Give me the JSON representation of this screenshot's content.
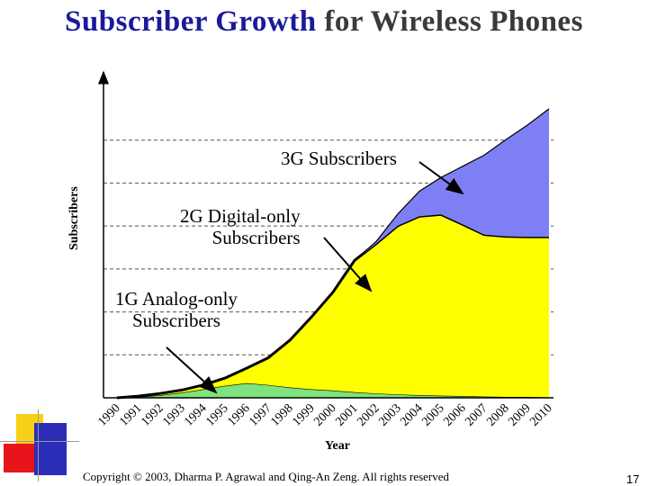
{
  "title_part1": "Subscriber Growth",
  "title_part2": "for Wireless Phones",
  "footer": "Copyright © 2003, Dharma P. Agrawal and Qing-An Zeng. All rights reserved",
  "page_number": "17",
  "chart_data": {
    "type": "area",
    "stacked": true,
    "title": "Subscriber Growth for Wireless Phones",
    "xlabel": "Year",
    "ylabel": "Subscribers",
    "x": [
      "1990",
      "1991",
      "1992",
      "1993",
      "1994",
      "1995",
      "1996",
      "1997",
      "1998",
      "1999",
      "2000",
      "2001",
      "2002",
      "2003",
      "2004",
      "2005",
      "2006",
      "2007",
      "2008",
      "2009",
      "2010"
    ],
    "ylim": [
      0,
      7
    ],
    "gridlines": "dashed",
    "series": [
      {
        "name": "1G Analog-only Subscribers",
        "color": "#7de37d",
        "values": [
          0,
          0.02,
          0.06,
          0.12,
          0.2,
          0.28,
          0.34,
          0.3,
          0.24,
          0.2,
          0.17,
          0.13,
          0.1,
          0.08,
          0.06,
          0.05,
          0.04,
          0.03,
          0.02,
          0.02,
          0.01
        ]
      },
      {
        "name": "2G Digital-only Subscribers",
        "color": "#ffff00",
        "values": [
          0,
          0.02,
          0.04,
          0.06,
          0.1,
          0.18,
          0.35,
          0.63,
          1.1,
          1.68,
          2.29,
          3.07,
          3.49,
          3.93,
          4.17,
          4.22,
          4.0,
          3.77,
          3.74,
          3.73,
          3.74
        ]
      },
      {
        "name": "3G Subscribers",
        "color": "#7f7ff5",
        "values": [
          0,
          0,
          0,
          0,
          0,
          0,
          0,
          0,
          0,
          0,
          0,
          0,
          0.05,
          0.27,
          0.58,
          0.86,
          1.35,
          1.85,
          2.25,
          2.6,
          2.98
        ]
      }
    ],
    "annotations": [
      "3G Subscribers",
      "2G Digital-only Subscribers",
      "1G Analog-only Subscribers"
    ]
  },
  "labels": {
    "ann_3g": "3G Subscribers",
    "ann_2g_line1": "2G Digital-only",
    "ann_2g_line2": "Subscribers",
    "ann_1g_line1": "1G Analog-only",
    "ann_1g_line2": "Subscribers"
  }
}
